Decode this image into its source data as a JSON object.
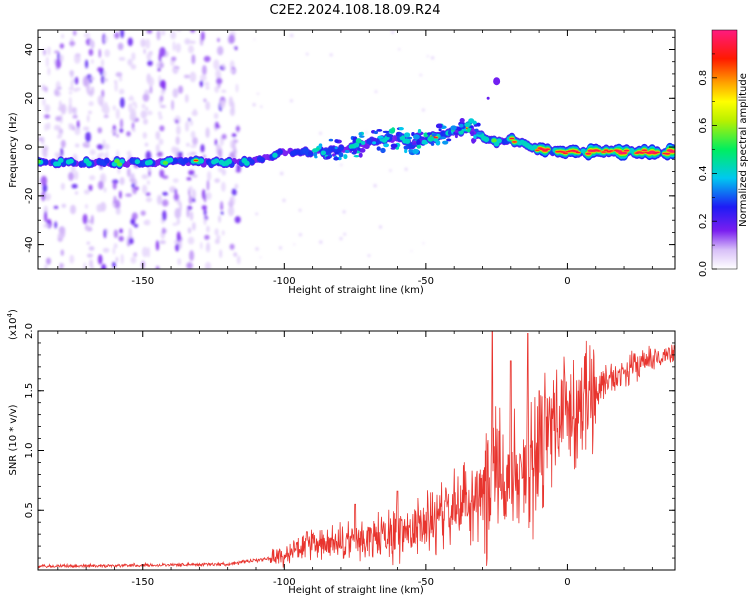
{
  "title": "C2E2.2024.108.18.09.R24",
  "colors": {
    "snr_line": "#e8342e",
    "frame": "#000000"
  },
  "chart_data": [
    {
      "type": "heatmap",
      "name": "spectrogram",
      "xlabel": "Height of straight line (km)",
      "ylabel": "Frequency (Hz)",
      "xlim": [
        -187,
        38
      ],
      "ylim": [
        -50,
        48
      ],
      "xticks": [
        -150,
        -100,
        -50,
        0
      ],
      "yticks": [
        -40,
        -20,
        0,
        20,
        40
      ],
      "colorbar": {
        "label": "Normalized spectral amplitude",
        "range": [
          0.0,
          1.0
        ],
        "ticks": [
          0.0,
          0.2,
          0.4,
          0.6,
          0.8
        ],
        "colormap": "rainbow (violet → blue → cyan → green → yellow → orange → red → pink)"
      },
      "ridge": {
        "description": "dominant frequency ridge vs height",
        "x": [
          -187,
          -160,
          -140,
          -120,
          -110,
          -100,
          -90,
          -80,
          -70,
          -60,
          -55,
          -50,
          -45,
          -40,
          -35,
          -32,
          -28,
          -25,
          -20,
          -15,
          -10,
          -5,
          0,
          10,
          20,
          30,
          38
        ],
        "y": [
          -6,
          -6.5,
          -6,
          -6.5,
          -5.5,
          -2,
          -2,
          -1,
          2,
          4,
          1,
          3,
          5,
          6,
          8,
          5,
          3,
          2,
          3,
          1,
          -1,
          -2,
          -2,
          -2,
          -2,
          -2,
          -2
        ],
        "amplitude": [
          0.5,
          0.5,
          0.5,
          0.55,
          0.45,
          0.4,
          0.4,
          0.45,
          0.45,
          0.5,
          0.5,
          0.55,
          0.6,
          0.6,
          0.65,
          0.55,
          0.55,
          0.6,
          0.6,
          0.7,
          0.8,
          0.85,
          0.9,
          0.95,
          1.0,
          1.0,
          1.0
        ]
      },
      "noise_region_x": [
        -187,
        -115
      ],
      "isolated_blob": {
        "x": -25,
        "y": 27
      }
    },
    {
      "type": "line",
      "name": "snr",
      "xlabel": "Height of straight line (km)",
      "ylabel": "SNR (10 * v/v)",
      "y_multiplier_label": "(x10",
      "y_multiplier_exp": "4",
      "xlim": [
        -187,
        38
      ],
      "ylim": [
        0,
        2.0
      ],
      "xticks": [
        -150,
        -100,
        -50,
        0
      ],
      "yticks": [
        0.5,
        1.0,
        1.5,
        2.0
      ],
      "ytick_labels": [
        "0.5",
        "1.0",
        "1.5",
        "2.0"
      ],
      "envelope": {
        "x": [
          -187,
          -150,
          -120,
          -110,
          -100,
          -95,
          -90,
          -80,
          -70,
          -60,
          -55,
          -50,
          -45,
          -40,
          -35,
          -30,
          -27,
          -25,
          -22,
          -20,
          -17,
          -15,
          -12,
          -10,
          -8,
          -5,
          -2,
          0,
          5,
          10,
          15,
          20,
          25,
          30,
          35,
          38
        ],
        "y": [
          0.03,
          0.04,
          0.05,
          0.08,
          0.12,
          0.18,
          0.2,
          0.22,
          0.26,
          0.3,
          0.35,
          0.38,
          0.45,
          0.5,
          0.6,
          0.7,
          0.8,
          0.9,
          0.85,
          0.85,
          0.95,
          0.9,
          1.0,
          1.1,
          1.2,
          1.25,
          1.3,
          1.35,
          1.4,
          1.5,
          1.6,
          1.65,
          1.72,
          1.76,
          1.8,
          1.82
        ]
      },
      "peaks": [
        {
          "x": -26.5,
          "y": 2.0
        },
        {
          "x": -14,
          "y": 1.98
        },
        {
          "x": -20,
          "y": 1.75
        },
        {
          "x": -10,
          "y": 1.5
        },
        {
          "x": -60,
          "y": 0.66
        },
        {
          "x": -75,
          "y": 0.55
        },
        {
          "x": -92,
          "y": 0.32
        }
      ]
    }
  ]
}
